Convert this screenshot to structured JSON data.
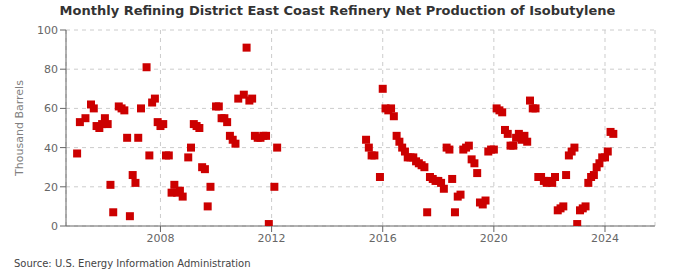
{
  "chart_data": {
    "type": "scatter",
    "title": "Monthly Refining District East Coast Refinery Net Production of Isobutylene",
    "y_label": "Thousand Barrels",
    "annotation": "Source: U.S. Energy Information Administration",
    "color": "#cc0000",
    "marker": "square",
    "grid": true,
    "xlim": [
      2004.6,
      2025.8
    ],
    "xticks": [
      2008,
      2012,
      2016,
      2020,
      2024
    ],
    "ylim": [
      0,
      100
    ],
    "yticks": [
      0,
      20,
      40,
      60,
      80,
      100
    ],
    "x": [
      2005.0,
      2005.1,
      2005.3,
      2005.5,
      2005.6,
      2005.7,
      2005.8,
      2005.9,
      2006.0,
      2006.1,
      2006.2,
      2006.3,
      2006.5,
      2006.6,
      2006.7,
      2006.8,
      2006.9,
      2007.0,
      2007.1,
      2007.2,
      2007.3,
      2007.5,
      2007.6,
      2007.7,
      2007.8,
      2007.9,
      2008.0,
      2008.1,
      2008.2,
      2008.3,
      2008.4,
      2008.5,
      2008.6,
      2008.7,
      2008.8,
      2009.0,
      2009.1,
      2009.2,
      2009.3,
      2009.4,
      2009.5,
      2009.6,
      2009.7,
      2009.8,
      2010.0,
      2010.1,
      2010.2,
      2010.3,
      2010.4,
      2010.5,
      2010.6,
      2010.7,
      2010.8,
      2011.0,
      2011.1,
      2011.2,
      2011.3,
      2011.4,
      2011.5,
      2011.6,
      2011.7,
      2011.8,
      2011.9,
      2012.1,
      2012.2,
      2015.4,
      2015.5,
      2015.6,
      2015.7,
      2015.9,
      2016.0,
      2016.1,
      2016.2,
      2016.3,
      2016.4,
      2016.5,
      2016.6,
      2016.7,
      2016.8,
      2016.9,
      2017.0,
      2017.1,
      2017.2,
      2017.3,
      2017.4,
      2017.5,
      2017.6,
      2017.7,
      2017.8,
      2017.9,
      2018.0,
      2018.1,
      2018.2,
      2018.3,
      2018.4,
      2018.5,
      2018.6,
      2018.7,
      2018.8,
      2018.9,
      2019.0,
      2019.1,
      2019.2,
      2019.3,
      2019.4,
      2019.5,
      2019.6,
      2019.7,
      2019.8,
      2019.9,
      2020.0,
      2020.1,
      2020.2,
      2020.3,
      2020.4,
      2020.5,
      2020.6,
      2020.7,
      2020.8,
      2020.9,
      2021.0,
      2021.1,
      2021.2,
      2021.3,
      2021.4,
      2021.5,
      2021.6,
      2021.7,
      2021.8,
      2021.9,
      2022.0,
      2022.1,
      2022.2,
      2022.3,
      2022.4,
      2022.5,
      2022.6,
      2022.7,
      2022.8,
      2022.9,
      2023.0,
      2023.1,
      2023.2,
      2023.3,
      2023.4,
      2023.5,
      2023.6,
      2023.7,
      2023.8,
      2023.9,
      2024.0,
      2024.1,
      2024.2,
      2024.3
    ],
    "values": [
      37,
      53,
      55,
      62,
      60,
      51,
      50,
      52,
      55,
      52,
      21,
      7,
      61,
      60,
      59,
      45,
      5,
      26,
      22,
      45,
      60,
      81,
      36,
      63,
      65,
      53,
      51,
      52,
      36,
      36,
      17,
      21,
      17,
      18,
      15,
      35,
      40,
      52,
      51,
      50,
      30,
      29,
      10,
      20,
      61,
      61,
      55,
      55,
      53,
      46,
      44,
      42,
      65,
      67,
      91,
      64,
      65,
      46,
      45,
      45,
      46,
      46,
      1,
      20,
      40,
      44,
      40,
      36,
      36,
      25,
      70,
      60,
      59,
      60,
      56,
      46,
      43,
      40,
      38,
      35,
      35,
      35,
      33,
      32,
      31,
      30,
      7,
      25,
      24,
      23,
      23,
      22,
      19,
      40,
      39,
      24,
      7,
      15,
      16,
      39,
      40,
      41,
      34,
      32,
      27,
      12,
      11,
      13,
      38,
      39,
      39,
      60,
      59,
      58,
      49,
      47,
      41,
      41,
      45,
      47,
      44,
      46,
      43,
      64,
      60,
      60,
      25,
      25,
      23,
      22,
      23,
      22,
      25,
      8,
      9,
      10,
      26,
      36,
      38,
      40,
      1,
      8,
      9,
      10,
      22,
      25,
      26,
      30,
      32,
      35,
      35,
      38,
      48,
      47
    ]
  }
}
